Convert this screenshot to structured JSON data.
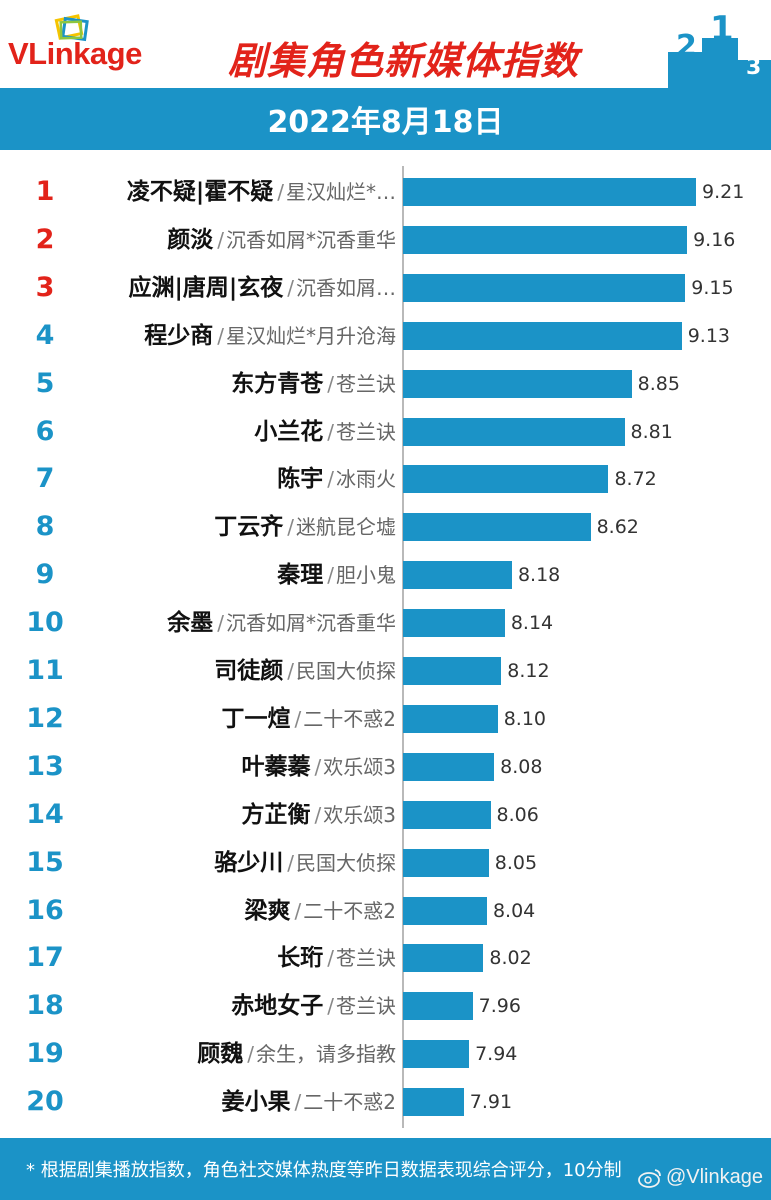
{
  "header": {
    "logo_text": "VLinkage",
    "title": "剧集角色新媒体指数",
    "podium_numbers": [
      "2",
      "1",
      "3"
    ]
  },
  "date": "2022年8月18日",
  "chart_data": {
    "type": "bar",
    "orientation": "horizontal",
    "title": "剧集角色新媒体指数",
    "subtitle": "2022年8月18日",
    "xlim": [
      0,
      9.21
    ],
    "grid": false,
    "legend": "none",
    "bar_color": "#1b93c7",
    "rank_colors": {
      "top3": "#e2231a",
      "rest": "#1b93c7"
    },
    "rows": [
      {
        "rank": "1",
        "name": "凌不疑|霍不疑",
        "show": "星汉灿烂*…",
        "value": 9.21,
        "value_label": "9.21"
      },
      {
        "rank": "2",
        "name": "颜淡",
        "show": "沉香如屑*沉香重华",
        "value": 9.16,
        "value_label": "9.16"
      },
      {
        "rank": "3",
        "name": "应渊|唐周|玄夜",
        "show": "沉香如屑…",
        "value": 9.15,
        "value_label": "9.15"
      },
      {
        "rank": "4",
        "name": "程少商",
        "show": "星汉灿烂*月升沧海",
        "value": 9.13,
        "value_label": "9.13"
      },
      {
        "rank": "5",
        "name": "东方青苍",
        "show": "苍兰诀",
        "value": 8.85,
        "value_label": "8.85"
      },
      {
        "rank": "6",
        "name": "小兰花",
        "show": "苍兰诀",
        "value": 8.81,
        "value_label": "8.81"
      },
      {
        "rank": "7",
        "name": "陈宇",
        "show": "冰雨火",
        "value": 8.72,
        "value_label": "8.72"
      },
      {
        "rank": "8",
        "name": "丁云齐",
        "show": "迷航昆仑墟",
        "value": 8.62,
        "value_label": "8.62"
      },
      {
        "rank": "9",
        "name": "秦理",
        "show": "胆小鬼",
        "value": 8.18,
        "value_label": "8.18"
      },
      {
        "rank": "10",
        "name": "余墨",
        "show": "沉香如屑*沉香重华",
        "value": 8.14,
        "value_label": "8.14"
      },
      {
        "rank": "11",
        "name": "司徒颜",
        "show": "民国大侦探",
        "value": 8.12,
        "value_label": "8.12"
      },
      {
        "rank": "12",
        "name": "丁一煊",
        "show": "二十不惑2",
        "value": 8.1,
        "value_label": "8.10"
      },
      {
        "rank": "13",
        "name": "叶蓁蓁",
        "show": "欢乐颂3",
        "value": 8.08,
        "value_label": "8.08"
      },
      {
        "rank": "14",
        "name": "方芷衡",
        "show": "欢乐颂3",
        "value": 8.06,
        "value_label": "8.06"
      },
      {
        "rank": "15",
        "name": "骆少川",
        "show": "民国大侦探",
        "value": 8.05,
        "value_label": "8.05"
      },
      {
        "rank": "16",
        "name": "梁爽",
        "show": "二十不惑2",
        "value": 8.04,
        "value_label": "8.04"
      },
      {
        "rank": "17",
        "name": "长珩",
        "show": "苍兰诀",
        "value": 8.02,
        "value_label": "8.02"
      },
      {
        "rank": "18",
        "name": "赤地女子",
        "show": "苍兰诀",
        "value": 7.96,
        "value_label": "7.96"
      },
      {
        "rank": "19",
        "name": "顾魏",
        "show": "余生，请多指教",
        "value": 7.94,
        "value_label": "7.94"
      },
      {
        "rank": "20",
        "name": "姜小果",
        "show": "二十不惑2",
        "value": 7.91,
        "value_label": "7.91"
      }
    ]
  },
  "separator": "/",
  "footer": {
    "note": "* 根据剧集播放指数，角色社交媒体热度等昨日数据表现综合评分，10分制",
    "watermark": "@Vlinkage"
  }
}
